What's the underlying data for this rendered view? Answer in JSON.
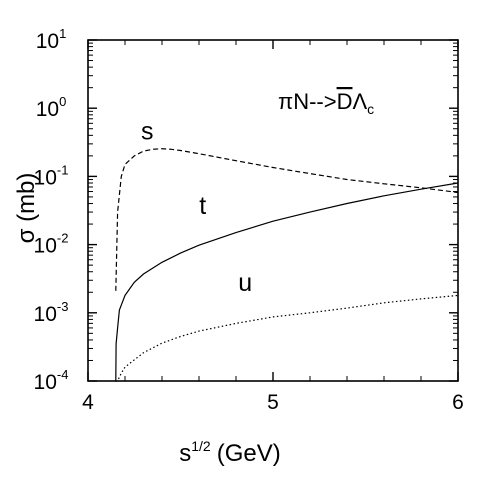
{
  "chart_data": {
    "type": "line",
    "title": "",
    "xlabel": {
      "base": "s",
      "sup": "1/2",
      "unit": "(GeV)"
    },
    "ylabel": "σ (mb)",
    "xlim": [
      4,
      6
    ],
    "ylim": [
      0.0001,
      10
    ],
    "yscale": "log",
    "grid": false,
    "x_ticks": [
      {
        "value": 4,
        "label": "4"
      },
      {
        "value": 5,
        "label": "5"
      },
      {
        "value": 6,
        "label": "6"
      }
    ],
    "y_ticks": [
      {
        "value": 0.0001,
        "base": "10",
        "exp": "-4"
      },
      {
        "value": 0.001,
        "base": "10",
        "exp": "-3"
      },
      {
        "value": 0.01,
        "base": "10",
        "exp": "-2"
      },
      {
        "value": 0.1,
        "base": "10",
        "exp": "-1"
      },
      {
        "value": 1,
        "base": "10",
        "exp": "0"
      },
      {
        "value": 10,
        "base": "10",
        "exp": "1"
      }
    ],
    "annotation": {
      "pi": "π",
      "n": "N",
      "arrow": "-->",
      "dbar": "D",
      "lambda": "Λ",
      "sub": "c"
    },
    "series": [
      {
        "name": "s",
        "style": "dashed",
        "label_at": [
          4.32,
          0.35
        ],
        "x": [
          4.15,
          4.16,
          4.18,
          4.2,
          4.25,
          4.3,
          4.35,
          4.4,
          4.45,
          4.5,
          4.6,
          4.8,
          5.0,
          5.2,
          5.4,
          5.6,
          5.8,
          6.0
        ],
        "y": [
          0.0021,
          0.03,
          0.1,
          0.15,
          0.2,
          0.235,
          0.25,
          0.255,
          0.25,
          0.24,
          0.215,
          0.17,
          0.135,
          0.11,
          0.09,
          0.078,
          0.068,
          0.058
        ]
      },
      {
        "name": "t",
        "style": "solid",
        "label_at": [
          4.62,
          0.028
        ],
        "x": [
          4.15,
          4.152,
          4.16,
          4.17,
          4.2,
          4.25,
          4.3,
          4.4,
          4.5,
          4.6,
          4.8,
          5.0,
          5.2,
          5.4,
          5.6,
          5.8,
          6.0
        ],
        "y": [
          0.0001,
          0.00035,
          0.0006,
          0.0011,
          0.0018,
          0.0028,
          0.0037,
          0.0055,
          0.0075,
          0.0098,
          0.015,
          0.022,
          0.03,
          0.04,
          0.052,
          0.065,
          0.08
        ]
      },
      {
        "name": "u",
        "style": "dotted",
        "label_at": [
          4.85,
          0.0021
        ],
        "x": [
          4.15,
          4.16,
          4.18,
          4.2,
          4.3,
          4.4,
          4.5,
          4.6,
          4.8,
          5.0,
          5.2,
          5.4,
          5.6,
          5.8,
          6.0
        ],
        "y": [
          0.0001,
          0.0001,
          0.00013,
          0.00016,
          0.00026,
          0.00036,
          0.00045,
          0.00054,
          0.0007,
          0.00087,
          0.001,
          0.00117,
          0.0014,
          0.0016,
          0.0018
        ]
      }
    ]
  }
}
